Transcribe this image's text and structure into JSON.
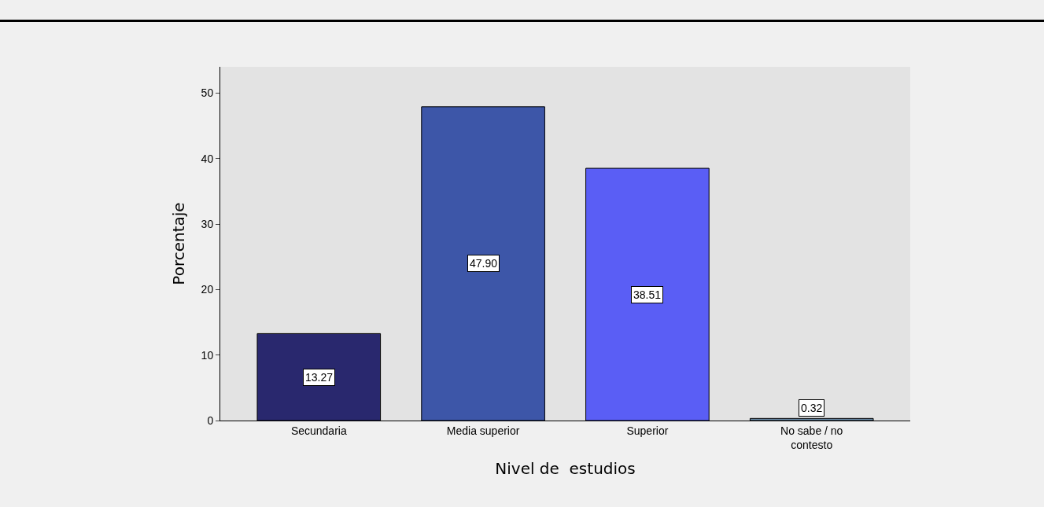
{
  "chart_data": {
    "type": "bar",
    "xlabel": "Nivel de  estudios",
    "ylabel": "Porcentaje",
    "categories": [
      "Secundaria",
      "Media superior",
      "Superior",
      "No sabe / no contesto"
    ],
    "values": [
      13.27,
      47.9,
      38.51,
      0.32
    ],
    "value_labels": [
      "13.27",
      "47.90",
      "38.51",
      "0.32"
    ],
    "colors": [
      "#29286e",
      "#3d56a8",
      "#5a5ef5",
      "#6a8ca8"
    ],
    "ylim": [
      0,
      54
    ],
    "yticks": [
      0,
      10,
      20,
      30,
      40,
      50
    ],
    "grid": false,
    "legend": false
  }
}
